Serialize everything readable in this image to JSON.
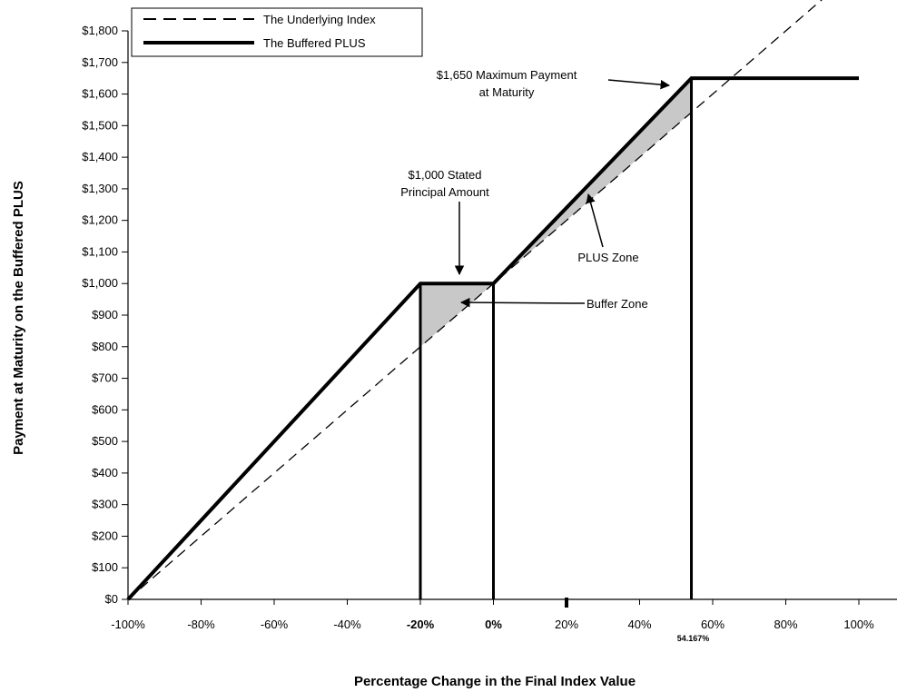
{
  "chart_data": {
    "type": "line",
    "xlabel": "Percentage Change in the Final Index Value",
    "ylabel": "Payment at Maturity on the Buffered PLUS",
    "xlim": [
      -100,
      100
    ],
    "ylim": [
      0,
      1800
    ],
    "x_ticks": [
      "-100%",
      "-80%",
      "-60%",
      "-40%",
      "-20%",
      "0%",
      "20%",
      "40%",
      "60%",
      "80%",
      "100%"
    ],
    "x_tick_values": [
      -100,
      -80,
      -60,
      -40,
      -20,
      0,
      20,
      40,
      60,
      80,
      100
    ],
    "bold_x_ticks": [
      "-20%",
      "0%"
    ],
    "extra_x_tick": {
      "value": 54.167,
      "label": "54.167%"
    },
    "y_ticks": [
      "$0",
      "$100",
      "$200",
      "$300",
      "$400",
      "$500",
      "$600",
      "$700",
      "$800",
      "$900",
      "$1,000",
      "$1,100",
      "$1,200",
      "$1,300",
      "$1,400",
      "$1,500",
      "$1,600",
      "$1,700",
      "$1,800"
    ],
    "y_tick_values": [
      0,
      100,
      200,
      300,
      400,
      500,
      600,
      700,
      800,
      900,
      1000,
      1100,
      1200,
      1300,
      1400,
      1500,
      1600,
      1700,
      1800
    ],
    "series": [
      {
        "name": "The Underlying Index",
        "style": "dashed",
        "x": [
          -100,
          100
        ],
        "y": [
          0,
          2000
        ]
      },
      {
        "name": "The Buffered PLUS",
        "style": "solid-bold",
        "x": [
          -100,
          -20,
          0,
          54.167,
          100
        ],
        "y": [
          0,
          1000,
          1000,
          1650,
          1650
        ]
      }
    ],
    "vertical_lines": [
      -20,
      0,
      54.167
    ],
    "shaded_zones": [
      {
        "x": [
          -20,
          0
        ],
        "upper": [
          1000,
          1000
        ],
        "lower": [
          800,
          1000
        ]
      },
      {
        "x": [
          0,
          54.167
        ],
        "upper": [
          1000,
          1650
        ],
        "lower": [
          1000,
          1541.67
        ]
      }
    ],
    "annotations": [
      {
        "lines": [
          "$1,650 Maximum Payment",
          "at Maturity"
        ]
      },
      {
        "lines": [
          "$1,000 Stated",
          "Principal Amount"
        ]
      },
      {
        "lines": [
          "PLUS Zone"
        ]
      },
      {
        "lines": [
          "Buffer Zone"
        ]
      }
    ],
    "legend": {
      "placement": "top-left"
    },
    "grid": false
  }
}
